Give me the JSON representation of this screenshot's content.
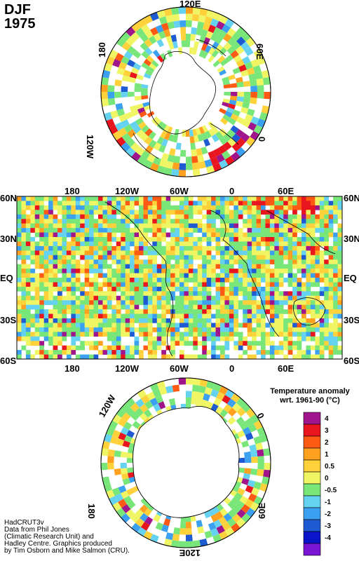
{
  "title": {
    "season": "DJF",
    "year": "1975"
  },
  "north_polar": {
    "labels": {
      "top": "120E",
      "left": "180",
      "right": "60E",
      "lowleft": "120W",
      "lowright": "0"
    }
  },
  "equirect": {
    "lon_labels": [
      "180",
      "120W",
      "60W",
      "0",
      "60E"
    ],
    "lat_labels_left": [
      "60N",
      "30N",
      "EQ",
      "30S",
      "60S"
    ],
    "lat_labels_right": [
      "60N",
      "30N",
      "EQ",
      "30S",
      "60S"
    ]
  },
  "south_polar": {
    "labels": {
      "upleft": "120W",
      "upright": "0",
      "lowleft": "180",
      "lowright": "60E",
      "bottom": "120E"
    }
  },
  "legend": {
    "title_line1": "Temperature anomaly",
    "title_line2": "wrt. 1961-90  (°C)",
    "bins": [
      {
        "label": "4",
        "color": "#a0148c"
      },
      {
        "label": "3",
        "color": "#e8141e"
      },
      {
        "label": "2",
        "color": "#ff5a14"
      },
      {
        "label": "1",
        "color": "#ffa01e"
      },
      {
        "label": "0.5",
        "color": "#ffd23c"
      },
      {
        "label": "0",
        "color": "#f0f564"
      },
      {
        "label": "-0.5",
        "color": "#78e678"
      },
      {
        "label": "-1",
        "color": "#64d2f0"
      },
      {
        "label": "-2",
        "color": "#3ca0f0"
      },
      {
        "label": "-3",
        "color": "#1e5ad2"
      },
      {
        "label": "-4",
        "color": "#0a14c8"
      },
      {
        "label": "",
        "color": "#7814d2"
      }
    ]
  },
  "credits": [
    "HadCRUT3v",
    "Data from Phil Jones",
    "(Climatic Research Unit) and",
    "Hadley Centre.  Graphics produced",
    "by Tim Osborn and Mike Salmon (CRU)."
  ]
}
